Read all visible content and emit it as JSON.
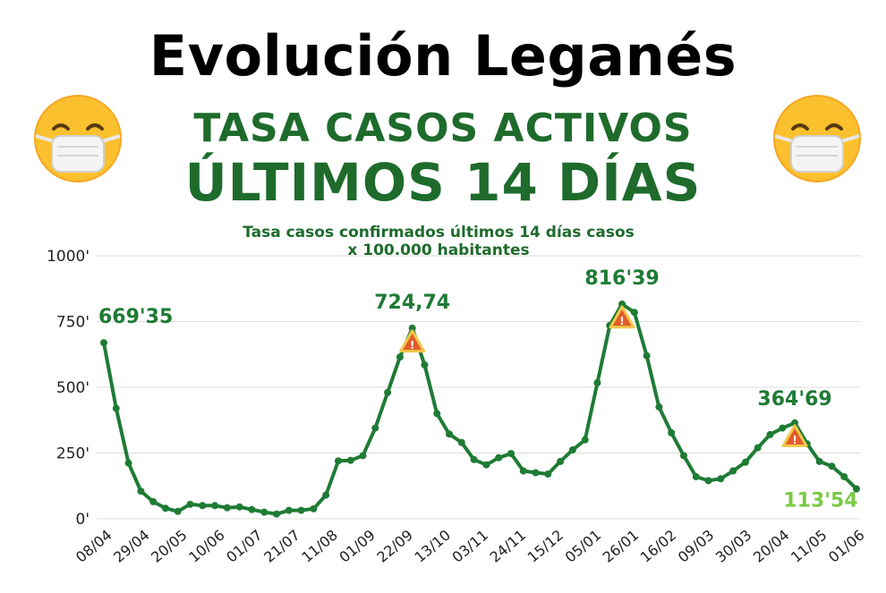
{
  "header": {
    "title": "Evolución Leganés",
    "subtitle_line1": "TASA CASOS ACTIVOS",
    "subtitle_line2": "ÚLTIMOS 14 DÍAS"
  },
  "icons": {
    "left": "face-with-medical-mask-icon",
    "right": "face-with-medical-mask-icon",
    "warning": "warning-triangle-icon"
  },
  "colors": {
    "line": "#1e7b34",
    "title_green": "#1e6b2c",
    "last_label": "#7ac943",
    "grid": "#dddddd"
  },
  "chart_data": {
    "type": "line",
    "title": "Tasa casos confirmados últimos 14 días casos x 100.000 habitantes",
    "title_lines": [
      "Tasa casos confirmados últimos 14 días  casos",
      "x 100.000 habitantes"
    ],
    "ylim": [
      0,
      1000
    ],
    "yticks": [
      0,
      250,
      500,
      750,
      1000
    ],
    "ytick_labels": [
      "0'",
      "250'",
      "500'",
      "750'",
      "1000'"
    ],
    "xtick_labels": [
      "08/04",
      "29/04",
      "20/05",
      "10/06",
      "01/07",
      "21/07",
      "11/08",
      "01/09",
      "22/09",
      "13/10",
      "03/11",
      "24/11",
      "15/12",
      "05/01",
      "26/01",
      "16/02",
      "09/03",
      "30/03",
      "20/04",
      "11/05",
      "01/06"
    ],
    "grid": true,
    "series": [
      {
        "values": [
          669.35,
          420,
          212,
          105,
          65,
          40,
          28,
          55,
          50,
          50,
          42,
          45,
          35,
          25,
          18,
          32,
          32,
          38,
          90,
          220,
          222,
          240,
          345,
          480,
          615,
          724.74,
          585,
          400,
          322,
          290,
          225,
          205,
          232,
          248,
          182,
          175,
          170,
          218,
          262,
          300,
          517,
          735,
          816.39,
          785,
          620,
          425,
          327,
          240,
          160,
          145,
          152,
          182,
          215,
          270,
          320,
          345,
          364.69,
          285,
          218,
          200,
          160,
          113.54
        ]
      }
    ],
    "annotations": [
      {
        "index": 0,
        "text": "669'35"
      },
      {
        "index": 25,
        "text": "724,74"
      },
      {
        "index": 42,
        "text": "816'39"
      },
      {
        "index": 56,
        "text": "364'69"
      },
      {
        "index": 61,
        "text": "113'54"
      }
    ],
    "warning_markers": [
      25,
      42,
      56
    ]
  }
}
